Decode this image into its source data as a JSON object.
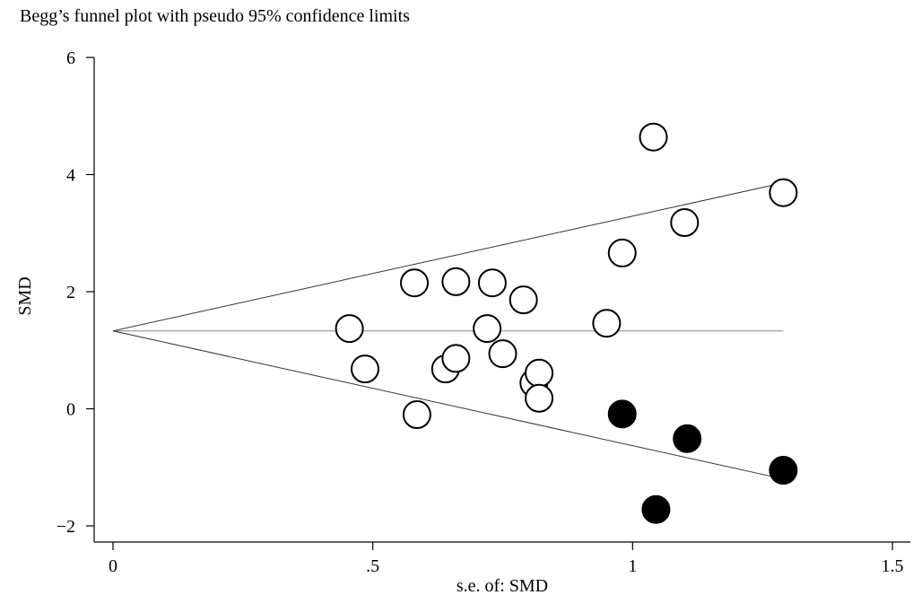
{
  "chart_data": {
    "type": "scatter",
    "title": "Begg’s funnel plot with pseudo 95% confidence limits",
    "xlabel": "s.e. of: SMD",
    "ylabel": "SMD",
    "xlim": [
      0,
      1.5
    ],
    "ylim": [
      -2,
      6
    ],
    "x_ticks": [
      {
        "value": 0,
        "label": "0"
      },
      {
        "value": 0.5,
        "label": ".5"
      },
      {
        "value": 1,
        "label": "1"
      },
      {
        "value": 1.5,
        "label": "1.5"
      }
    ],
    "y_ticks": [
      {
        "value": -2,
        "label": "−2"
      },
      {
        "value": 0,
        "label": "0"
      },
      {
        "value": 2,
        "label": "2"
      },
      {
        "value": 4,
        "label": "4"
      },
      {
        "value": 6,
        "label": "6"
      }
    ],
    "pooled_estimate": 1.33,
    "confidence_limits": {
      "z": 1.96,
      "se_range": [
        0,
        1.29
      ]
    },
    "grid": false,
    "series": [
      {
        "marker": "open-circle",
        "points": [
          {
            "x": 0.455,
            "y": 1.37
          },
          {
            "x": 0.485,
            "y": 0.68
          },
          {
            "x": 0.58,
            "y": 2.15
          },
          {
            "x": 0.585,
            "y": -0.1
          },
          {
            "x": 0.64,
            "y": 0.68
          },
          {
            "x": 0.66,
            "y": 2.17
          },
          {
            "x": 0.66,
            "y": 0.86
          },
          {
            "x": 0.72,
            "y": 1.37
          },
          {
            "x": 0.73,
            "y": 2.15
          },
          {
            "x": 0.75,
            "y": 0.94
          },
          {
            "x": 0.79,
            "y": 1.86
          },
          {
            "x": 0.81,
            "y": 0.44
          },
          {
            "x": 0.82,
            "y": 0.61
          },
          {
            "x": 0.82,
            "y": 0.18
          },
          {
            "x": 0.95,
            "y": 1.46
          },
          {
            "x": 0.98,
            "y": 2.66
          },
          {
            "x": 1.04,
            "y": 4.64
          },
          {
            "x": 1.1,
            "y": 3.18
          },
          {
            "x": 1.29,
            "y": 3.69
          }
        ]
      },
      {
        "marker": "filled-circle",
        "points": [
          {
            "x": 0.98,
            "y": -0.09
          },
          {
            "x": 1.045,
            "y": -1.72
          },
          {
            "x": 1.105,
            "y": -0.51
          },
          {
            "x": 1.29,
            "y": -1.05
          }
        ]
      }
    ]
  }
}
